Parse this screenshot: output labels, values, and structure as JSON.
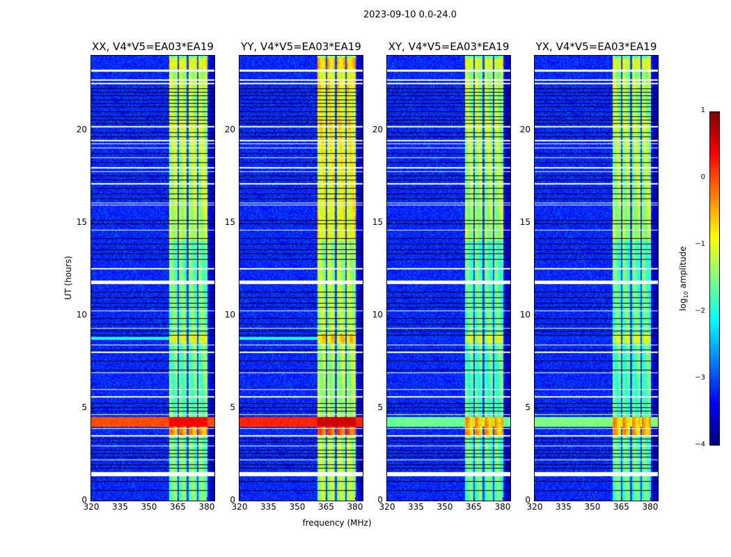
{
  "chart_data": {
    "type": "heatmap",
    "title": "2023-09-10 0.0-24.0",
    "xlabel": "frequency (MHz)",
    "ylabel": "UT (hours)",
    "xlim": [
      320,
      384
    ],
    "ylim": [
      0,
      24
    ],
    "xticks": [
      320,
      335,
      350,
      365,
      380
    ],
    "yticks": [
      0,
      5,
      10,
      15,
      20
    ],
    "colorbar": {
      "label_prefix": "log",
      "label_sub": "10",
      "label_suffix": " amplitude",
      "range": [
        -4,
        1
      ],
      "ticks": [
        1,
        0,
        -1,
        -2,
        -3,
        -4
      ],
      "tick_labels": [
        "1",
        "0",
        "−1",
        "−2",
        "−3",
        "−4"
      ],
      "colormap": "jet"
    },
    "background_level": -3.2,
    "bright_band_mhz": [
      360.5,
      380.5
    ],
    "band_gaps_mhz": [
      365.2,
      370.2,
      375.3
    ],
    "flagged_hours": [
      [
        23.15,
        23.25
      ],
      [
        22.65,
        22.72
      ],
      [
        22.45,
        22.52
      ],
      [
        20.15,
        20.2
      ],
      [
        19.38,
        19.44
      ],
      [
        19.22,
        19.27
      ],
      [
        19.0,
        19.06
      ],
      [
        18.47,
        18.52
      ],
      [
        17.92,
        17.98
      ],
      [
        17.72,
        17.77
      ],
      [
        17.07,
        17.12
      ],
      [
        16.02,
        16.08
      ],
      [
        15.92,
        15.96
      ],
      [
        14.57,
        14.62
      ],
      [
        12.47,
        12.55
      ],
      [
        11.68,
        11.88
      ],
      [
        10.22,
        10.27
      ],
      [
        9.27,
        9.32
      ],
      [
        8.37,
        8.42
      ],
      [
        7.97,
        8.02
      ],
      [
        6.87,
        6.92
      ],
      [
        5.97,
        6.02
      ],
      [
        5.57,
        5.62
      ],
      [
        4.62,
        4.67
      ],
      [
        3.87,
        3.92
      ],
      [
        3.47,
        3.52
      ],
      [
        2.92,
        2.97
      ],
      [
        2.17,
        2.22
      ],
      [
        1.33,
        1.55
      ]
    ],
    "missing_hours": [
      0.55,
      1.05,
      1.75,
      1.95,
      2.35,
      2.55,
      2.75,
      3.15,
      3.35,
      4.85,
      5.05,
      5.25,
      7.05,
      7.55,
      8.15,
      8.95,
      9.15,
      9.55,
      9.85,
      10.45,
      10.65,
      10.95,
      11.25,
      13.05,
      13.35,
      13.55,
      13.85,
      14.15,
      14.95,
      15.15,
      16.3,
      16.55,
      16.85,
      17.3,
      17.55,
      18.25,
      18.75,
      19.65,
      19.85,
      20.35,
      20.55,
      20.75,
      21.0,
      21.25,
      21.45,
      21.65,
      21.85,
      22.05,
      22.25
    ],
    "panels": [
      {
        "title": "XX, V4*V5=EA03*EA19",
        "rfi_level": 0.0,
        "band_level": -1.6,
        "line_8p7_level": -2.0
      },
      {
        "title": "YY, V4*V5=EA03*EA19",
        "rfi_level": 0.2,
        "band_level": -1.3,
        "line_8p7_level": -2.0
      },
      {
        "title": "XY, V4*V5=EA03*EA19",
        "rfi_level": -1.6,
        "band_level": -1.7,
        "line_8p7_level": -3.2
      },
      {
        "title": "YX, V4*V5=EA03*EA19",
        "rfi_level": -1.5,
        "band_level": -1.7,
        "line_8p7_level": -3.2
      }
    ],
    "rfi_hours": [
      4.0,
      4.5
    ],
    "band_enhancements": [
      [
        3.5,
        4.5,
        1.2
      ],
      [
        8.5,
        9.0,
        0.6
      ],
      [
        14.0,
        16.5,
        0.4
      ],
      [
        16.5,
        23.9,
        0.35
      ],
      [
        20.0,
        20.6,
        0.5
      ],
      [
        22.0,
        22.8,
        0.5
      ],
      [
        23.3,
        23.9,
        0.7
      ]
    ]
  }
}
